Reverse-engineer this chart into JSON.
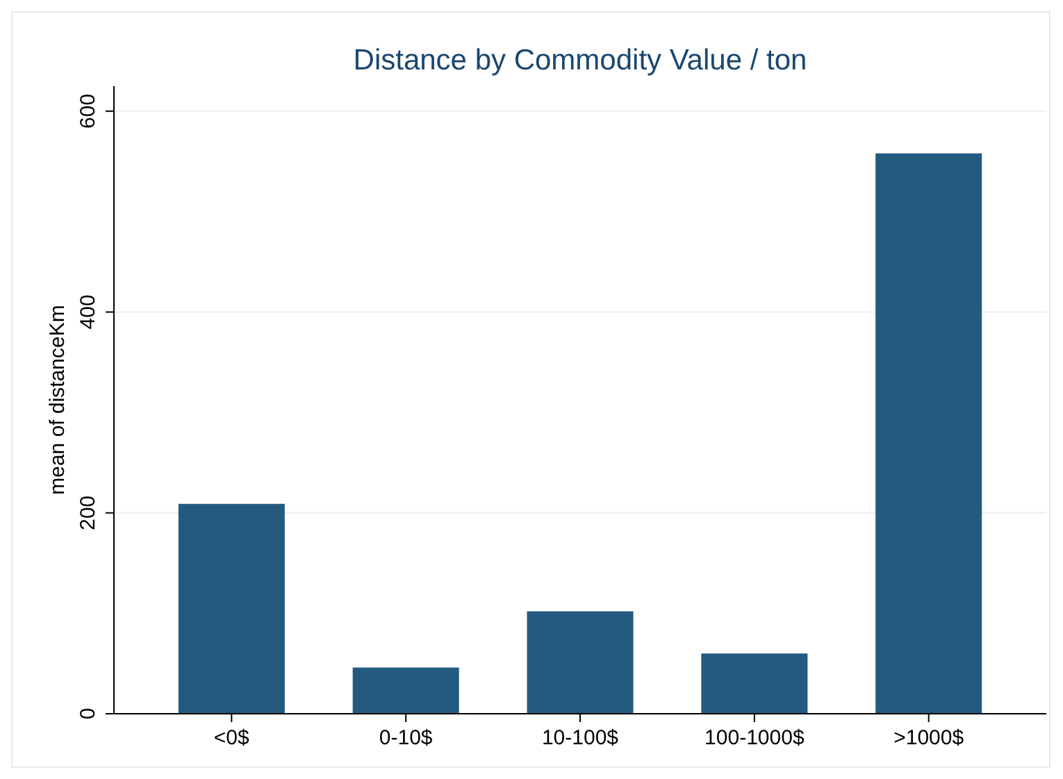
{
  "chart_data": {
    "type": "bar",
    "title": "Distance by Commodity Value / ton",
    "ylabel": "mean of distanceKm",
    "categories": [
      "<0$",
      "0-10$",
      "10-100$",
      "100-1000$",
      ">1000$"
    ],
    "values": [
      209,
      46,
      102,
      60,
      558
    ],
    "color": "#245a80",
    "ylim": [
      0,
      625
    ],
    "yticks": [
      0,
      200,
      400,
      600
    ],
    "grid": "y"
  }
}
